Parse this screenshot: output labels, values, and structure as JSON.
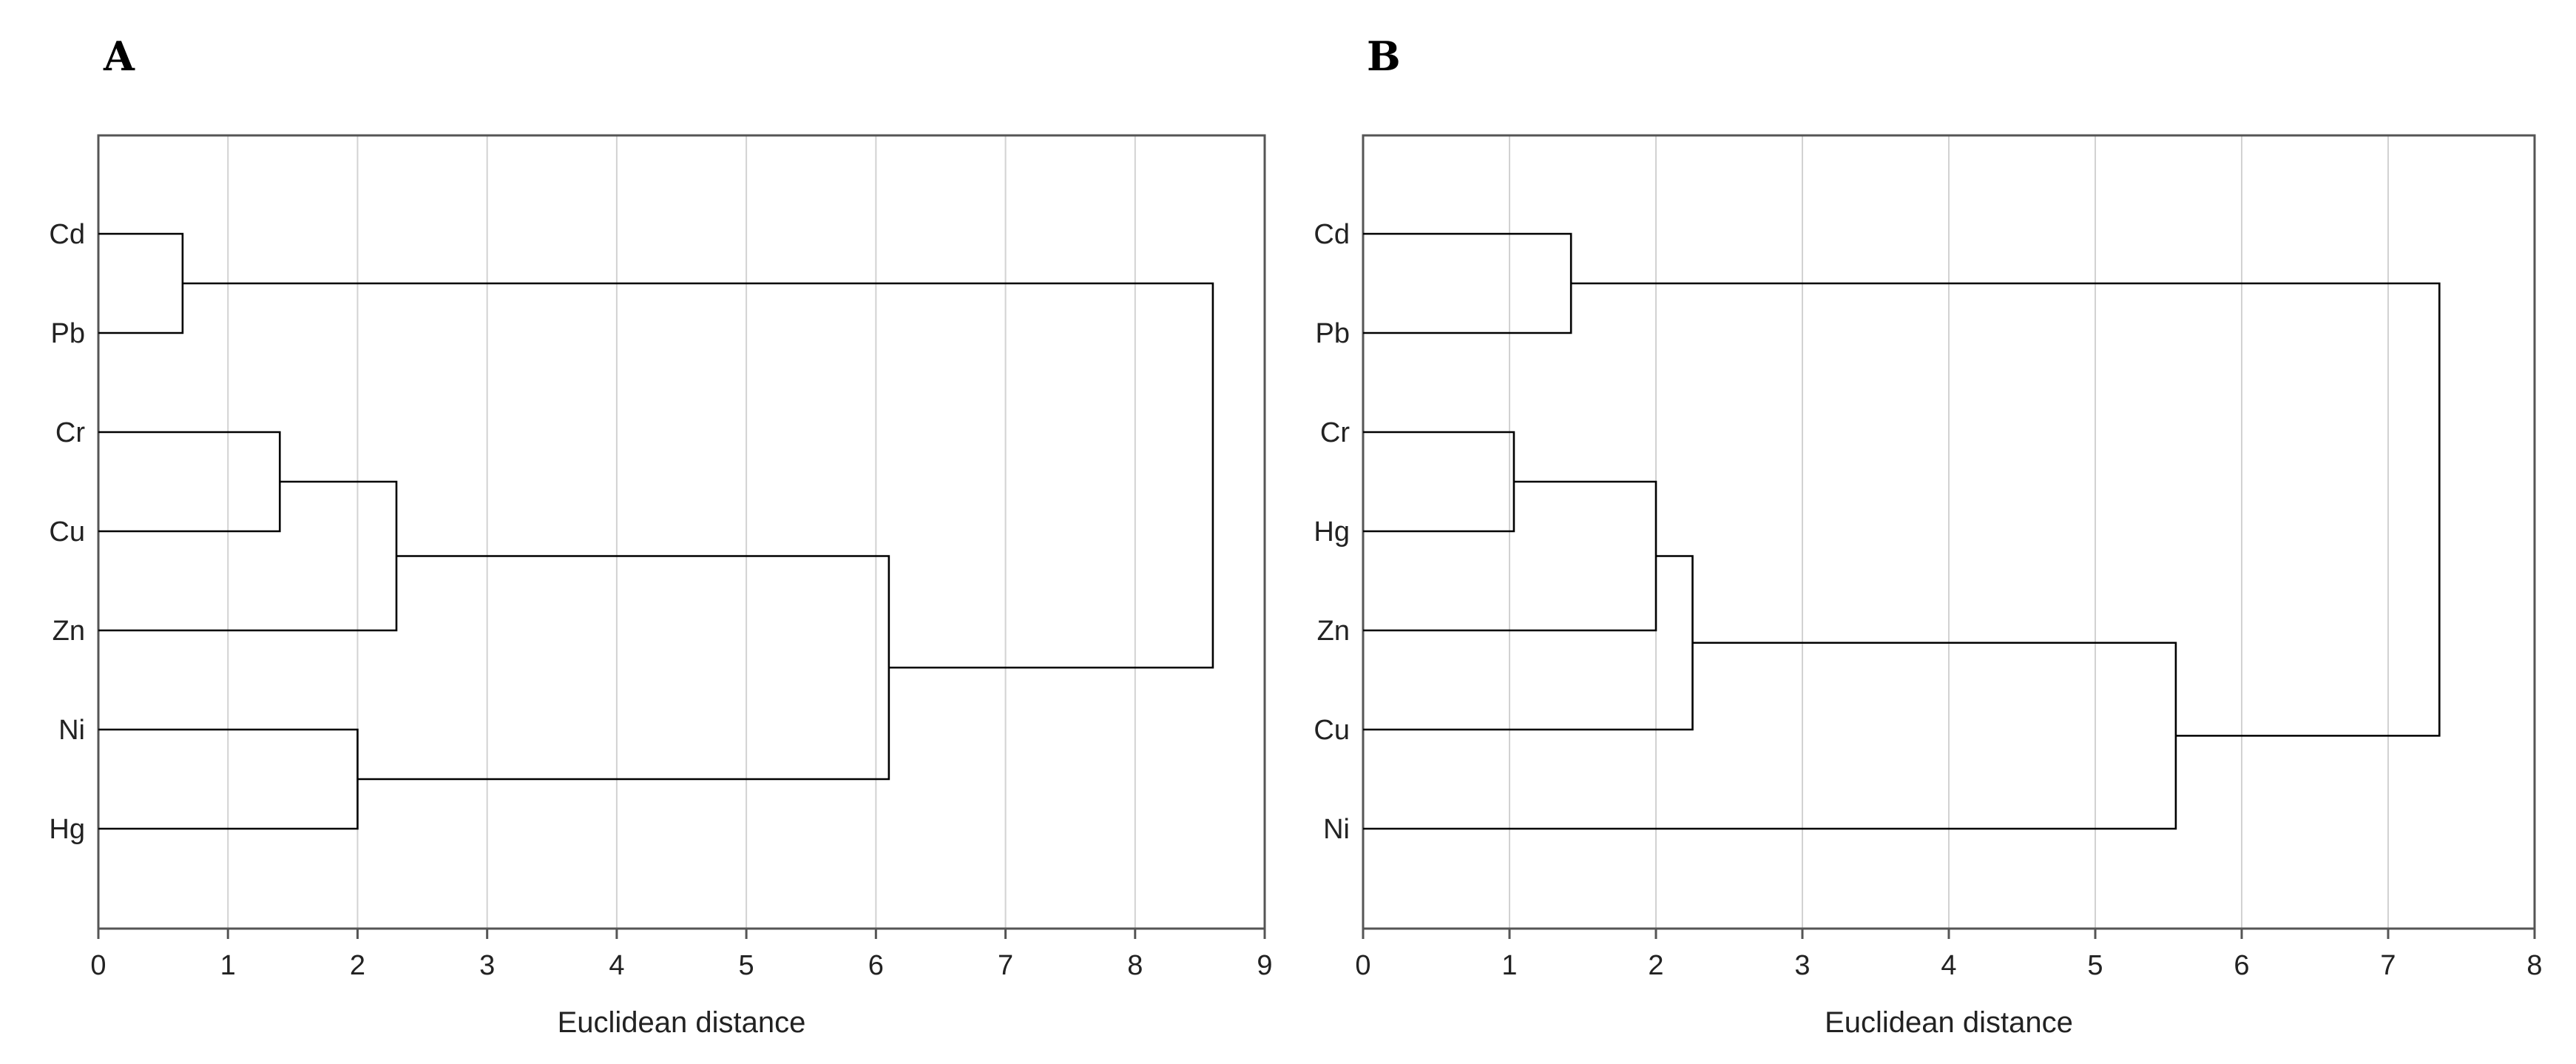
{
  "chart_data": [
    {
      "type": "dendrogram",
      "panel_label": "A",
      "xlabel": "Euclidean distance",
      "xlim": [
        0,
        9
      ],
      "xticks": [
        "0",
        "1",
        "2",
        "3",
        "4",
        "5",
        "6",
        "7",
        "8",
        "9"
      ],
      "grid": true,
      "leaves": [
        "Cd",
        "Pb",
        "Cr",
        "Cu",
        "Zn",
        "Ni",
        "Hg"
      ],
      "merges": [
        {
          "a": "Cd",
          "b": "Pb",
          "distance": 0.65
        },
        {
          "a": "Cr",
          "b": "Cu",
          "distance": 1.4
        },
        {
          "a": "Cr+Cu",
          "b": "Zn",
          "distance": 2.3
        },
        {
          "a": "Ni",
          "b": "Hg",
          "distance": 2.0
        },
        {
          "a": "Cr+Cu+Zn",
          "b": "Ni+Hg",
          "distance": 6.1
        },
        {
          "a": "Cd+Pb",
          "b": "Cr+Cu+Zn+Ni+Hg",
          "distance": 8.6
        }
      ]
    },
    {
      "type": "dendrogram",
      "panel_label": "B",
      "xlabel": "Euclidean distance",
      "xlim": [
        0,
        8
      ],
      "xticks": [
        "0",
        "1",
        "2",
        "3",
        "4",
        "5",
        "6",
        "7",
        "8"
      ],
      "grid": true,
      "leaves": [
        "Cd",
        "Pb",
        "Cr",
        "Hg",
        "Zn",
        "Cu",
        "Ni"
      ],
      "merges": [
        {
          "a": "Cd",
          "b": "Pb",
          "distance": 1.42
        },
        {
          "a": "Cr",
          "b": "Hg",
          "distance": 1.03
        },
        {
          "a": "Cr+Hg",
          "b": "Zn",
          "distance": 2.0
        },
        {
          "a": "Cr+Hg+Zn",
          "b": "Cu",
          "distance": 2.25
        },
        {
          "a": "Cr+Hg+Zn+Cu",
          "b": "Ni",
          "distance": 5.55
        },
        {
          "a": "Cd+Pb",
          "b": "Cr+Hg+Zn+Cu+Ni",
          "distance": 7.35
        }
      ]
    }
  ]
}
